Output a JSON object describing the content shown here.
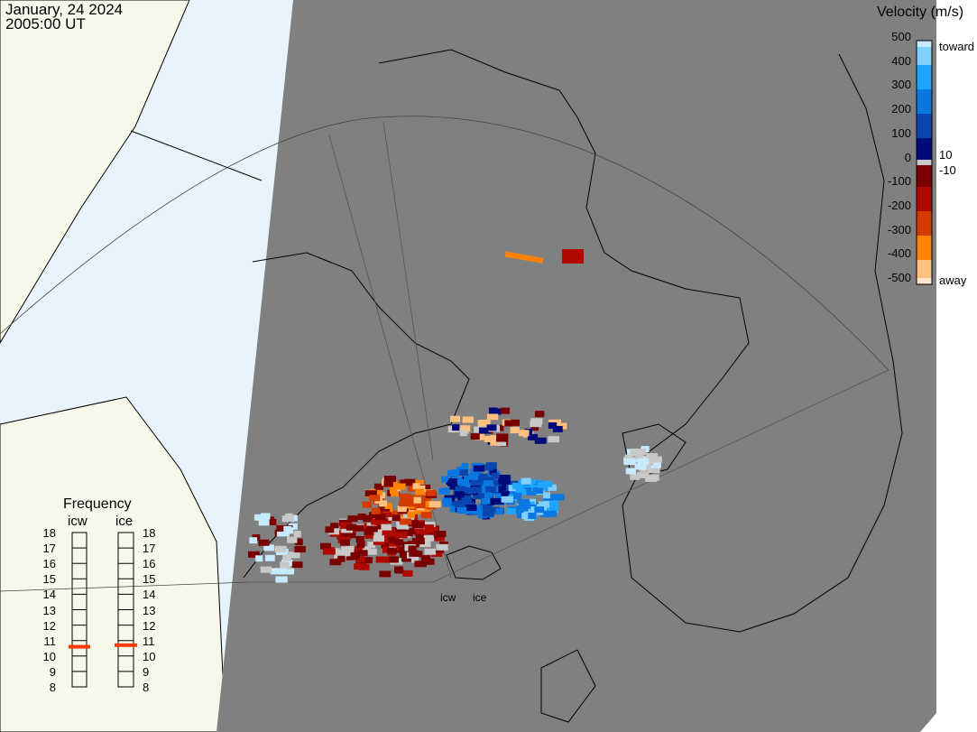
{
  "header": {
    "date": "January, 24 2024",
    "time": "2005:00 UT"
  },
  "velocity_scale": {
    "title": "Velocity (m/s)",
    "ticks": [
      "500",
      "400",
      "300",
      "200",
      "100",
      "0",
      "-100",
      "-200",
      "-300",
      "-400",
      "-500"
    ],
    "toward_label": "toward",
    "away_label": "away",
    "pos_threshold": "10",
    "neg_threshold": "-10",
    "colors": [
      "#c6ebff",
      "#80d0ff",
      "#1ea6ff",
      "#0a78e0",
      "#0a46b0",
      "#000a78",
      "#c8c8c8",
      "#7a0000",
      "#b00a00",
      "#d23c00",
      "#ff8200",
      "#ffc080",
      "#ffe6cc"
    ]
  },
  "frequency": {
    "title": "Frequency",
    "radars": [
      {
        "name": "icw",
        "value_mhz": 10.6
      },
      {
        "name": "ice",
        "value_mhz": 10.7
      }
    ],
    "ticks": [
      "18",
      "17",
      "16",
      "15",
      "14",
      "13",
      "12",
      "11",
      "10",
      "9",
      "8"
    ],
    "marker_color": "#ff3c00"
  },
  "sites": {
    "icw": "icw",
    "ice": "ice"
  },
  "colors": {
    "ocean": "#e8f4fc",
    "land": "#f8f8ea",
    "night": "#808080"
  }
}
